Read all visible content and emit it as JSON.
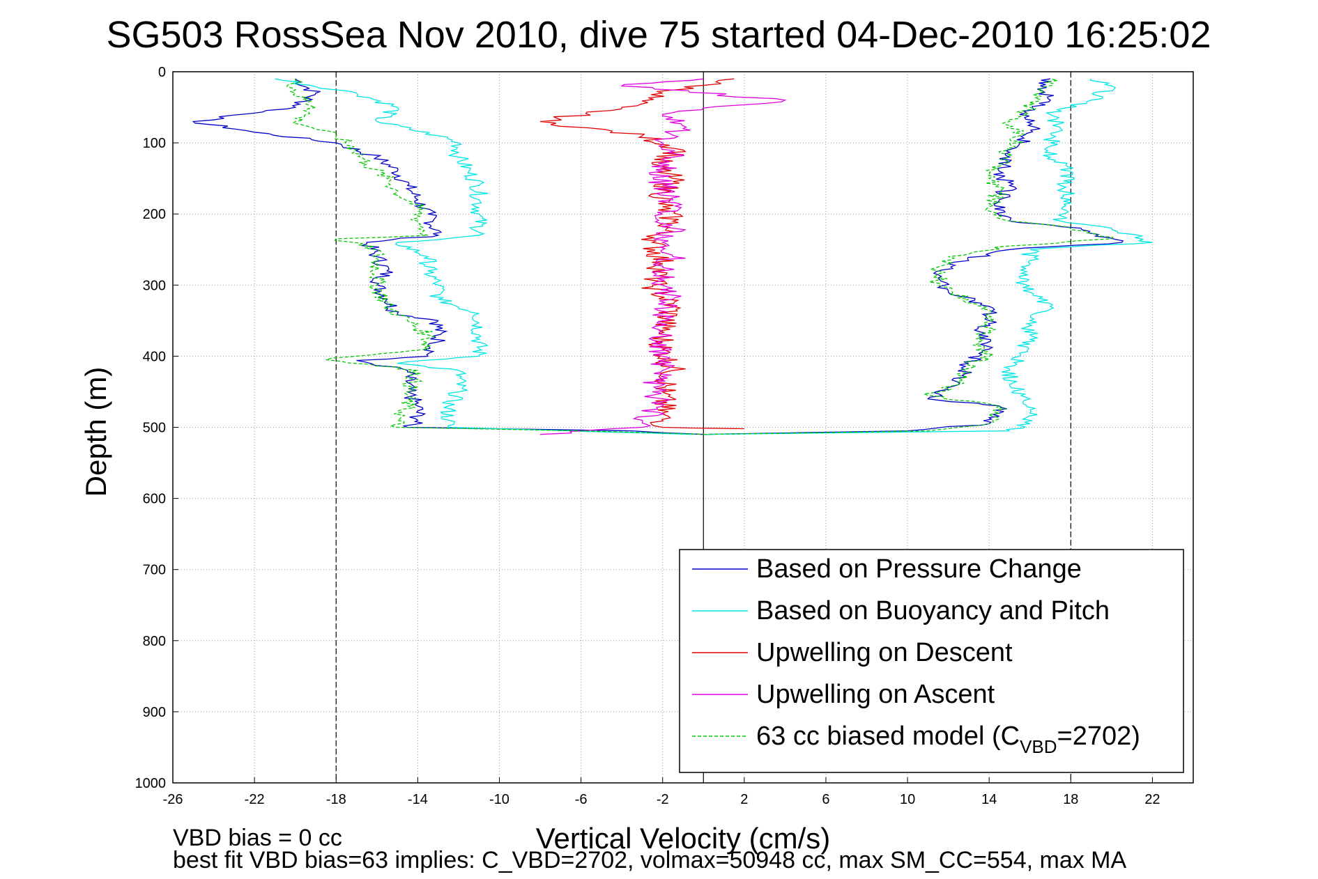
{
  "chart_data": {
    "type": "line",
    "title": "SG503 RossSea Nov 2010, dive 75 started 04-Dec-2010 16:25:02",
    "xlabel": "Vertical Velocity (cm/s)",
    "ylabel": "Depth (m)",
    "xlim": [
      -26,
      24
    ],
    "ylim": [
      0,
      1000
    ],
    "y_reversed": true,
    "grid": true,
    "legend_position": "lower-right",
    "x_ticks": [
      "-26",
      "-22",
      "-18",
      "-14",
      "-10",
      "-6",
      "-2",
      "2",
      "6",
      "10",
      "14",
      "18",
      "22"
    ],
    "y_ticks": [
      "0",
      "100",
      "200",
      "300",
      "400",
      "500",
      "600",
      "700",
      "800",
      "900",
      "1000"
    ],
    "reference_lines": [
      {
        "x": -18,
        "style": "dashed"
      },
      {
        "x": 0,
        "style": "solid"
      },
      {
        "x": 18,
        "style": "dashed"
      }
    ],
    "series": [
      {
        "name": "Based on Pressure Change",
        "color": "#0000c8",
        "style": "solid",
        "descent": [
          [
            10,
            -20
          ],
          [
            30,
            -19
          ],
          [
            50,
            -20
          ],
          [
            70,
            -25
          ],
          [
            85,
            -22
          ],
          [
            100,
            -18
          ],
          [
            120,
            -16
          ],
          [
            140,
            -15
          ],
          [
            160,
            -14.5
          ],
          [
            180,
            -14
          ],
          [
            200,
            -13.5
          ],
          [
            230,
            -13
          ],
          [
            240,
            -16.5
          ],
          [
            260,
            -16
          ],
          [
            280,
            -15.5
          ],
          [
            300,
            -16
          ],
          [
            320,
            -15.5
          ],
          [
            340,
            -15
          ],
          [
            350,
            -13
          ],
          [
            380,
            -13
          ],
          [
            400,
            -13.5
          ],
          [
            406,
            -17
          ],
          [
            420,
            -14.5
          ],
          [
            450,
            -14.5
          ],
          [
            470,
            -14
          ],
          [
            490,
            -14
          ],
          [
            500,
            -14.5
          ],
          [
            505,
            -3.5
          ],
          [
            510,
            0
          ]
        ],
        "ascent": [
          [
            510,
            0
          ],
          [
            505,
            10
          ],
          [
            495,
            14
          ],
          [
            480,
            14.5
          ],
          [
            470,
            14.5
          ],
          [
            460,
            11
          ],
          [
            440,
            12.5
          ],
          [
            410,
            13
          ],
          [
            400,
            13.5
          ],
          [
            390,
            14
          ],
          [
            370,
            13.5
          ],
          [
            350,
            14
          ],
          [
            330,
            14
          ],
          [
            310,
            12
          ],
          [
            290,
            11.5
          ],
          [
            270,
            12
          ],
          [
            250,
            15
          ],
          [
            240,
            20.5
          ],
          [
            220,
            18.5
          ],
          [
            210,
            15
          ],
          [
            180,
            14.5
          ],
          [
            160,
            15
          ],
          [
            140,
            14.5
          ],
          [
            120,
            15
          ],
          [
            100,
            15.5
          ],
          [
            80,
            16.5
          ],
          [
            60,
            15.5
          ],
          [
            40,
            17
          ],
          [
            20,
            16.5
          ],
          [
            10,
            17
          ]
        ]
      },
      {
        "name": "Based on Buoyancy and Pitch",
        "color": "#00e5e5",
        "style": "solid",
        "descent": [
          [
            10,
            -21
          ],
          [
            30,
            -17
          ],
          [
            50,
            -15
          ],
          [
            70,
            -16
          ],
          [
            90,
            -13
          ],
          [
            100,
            -12
          ],
          [
            120,
            -12
          ],
          [
            140,
            -11.5
          ],
          [
            160,
            -11
          ],
          [
            180,
            -11
          ],
          [
            200,
            -11
          ],
          [
            230,
            -11
          ],
          [
            240,
            -15
          ],
          [
            260,
            -13.5
          ],
          [
            280,
            -13.5
          ],
          [
            300,
            -13
          ],
          [
            320,
            -13
          ],
          [
            340,
            -11
          ],
          [
            370,
            -11
          ],
          [
            400,
            -11
          ],
          [
            410,
            -15
          ],
          [
            420,
            -12
          ],
          [
            450,
            -12
          ],
          [
            470,
            -12.5
          ],
          [
            490,
            -12.5
          ],
          [
            500,
            -12.5
          ],
          [
            510,
            -0.5
          ]
        ],
        "ascent": [
          [
            510,
            0
          ],
          [
            505,
            15
          ],
          [
            495,
            16
          ],
          [
            480,
            16
          ],
          [
            460,
            16
          ],
          [
            440,
            15
          ],
          [
            420,
            15
          ],
          [
            400,
            15.5
          ],
          [
            370,
            16
          ],
          [
            350,
            16
          ],
          [
            330,
            17
          ],
          [
            310,
            16
          ],
          [
            290,
            15.5
          ],
          [
            270,
            16
          ],
          [
            250,
            16
          ],
          [
            240,
            22
          ],
          [
            220,
            20
          ],
          [
            210,
            17.5
          ],
          [
            180,
            18
          ],
          [
            160,
            17.5
          ],
          [
            140,
            18
          ],
          [
            120,
            17
          ],
          [
            100,
            17
          ],
          [
            80,
            17.5
          ],
          [
            60,
            17
          ],
          [
            40,
            19
          ],
          [
            20,
            20
          ],
          [
            10,
            19
          ]
        ]
      },
      {
        "name": "Upwelling on Descent",
        "color": "#e00000",
        "style": "solid",
        "descent": [
          [
            10,
            1.5
          ],
          [
            30,
            -2
          ],
          [
            50,
            -4
          ],
          [
            70,
            -8
          ],
          [
            90,
            -3
          ],
          [
            110,
            -1
          ],
          [
            130,
            -2.5
          ],
          [
            150,
            -1.5
          ],
          [
            170,
            -2
          ],
          [
            190,
            -2
          ],
          [
            210,
            -1.5
          ],
          [
            240,
            -2.5
          ],
          [
            270,
            -2
          ],
          [
            300,
            -2.5
          ],
          [
            330,
            -1.5
          ],
          [
            360,
            -2
          ],
          [
            390,
            -2
          ],
          [
            420,
            -1.5
          ],
          [
            450,
            -2
          ],
          [
            480,
            -2
          ],
          [
            500,
            -2
          ],
          [
            502,
            2
          ]
        ]
      },
      {
        "name": "Upwelling on Ascent",
        "color": "#e000e0",
        "style": "solid",
        "ascent": [
          [
            510,
            -8
          ],
          [
            500,
            -3
          ],
          [
            490,
            -3
          ],
          [
            470,
            -2
          ],
          [
            450,
            -2.5
          ],
          [
            420,
            -2
          ],
          [
            400,
            -2
          ],
          [
            380,
            -2
          ],
          [
            360,
            -2.5
          ],
          [
            340,
            -2
          ],
          [
            320,
            -1.5
          ],
          [
            300,
            -2
          ],
          [
            280,
            -2
          ],
          [
            260,
            -1.5
          ],
          [
            240,
            -2
          ],
          [
            220,
            -1.5
          ],
          [
            200,
            -2
          ],
          [
            180,
            -1.5
          ],
          [
            160,
            -2
          ],
          [
            140,
            -2
          ],
          [
            120,
            -1.5
          ],
          [
            100,
            -2
          ],
          [
            80,
            -1
          ],
          [
            60,
            -2
          ],
          [
            40,
            4
          ],
          [
            20,
            -4
          ],
          [
            10,
            0
          ]
        ]
      },
      {
        "name": "63 cc biased model (CVBD=2702)",
        "legend_main": "63 cc biased model (C",
        "legend_sub": "VBD",
        "legend_tail": "=2702)",
        "color": "#00c800",
        "style": "dashed",
        "descent": [
          [
            10,
            -20
          ],
          [
            30,
            -20
          ],
          [
            50,
            -19
          ],
          [
            70,
            -20
          ],
          [
            90,
            -18
          ],
          [
            110,
            -17
          ],
          [
            130,
            -16.5
          ],
          [
            150,
            -15.5
          ],
          [
            170,
            -15
          ],
          [
            190,
            -14
          ],
          [
            210,
            -14
          ],
          [
            230,
            -13.5
          ],
          [
            235,
            -18
          ],
          [
            250,
            -16
          ],
          [
            270,
            -16
          ],
          [
            300,
            -16
          ],
          [
            330,
            -15.5
          ],
          [
            350,
            -14.5
          ],
          [
            370,
            -13.5
          ],
          [
            390,
            -13.5
          ],
          [
            405,
            -18.5
          ],
          [
            420,
            -14
          ],
          [
            450,
            -14.5
          ],
          [
            470,
            -14.5
          ],
          [
            490,
            -15
          ],
          [
            500,
            -15
          ],
          [
            505,
            -6
          ],
          [
            510,
            0
          ]
        ],
        "ascent": [
          [
            510,
            0
          ],
          [
            505,
            11
          ],
          [
            495,
            14
          ],
          [
            480,
            14.5
          ],
          [
            470,
            14.5
          ],
          [
            455,
            11
          ],
          [
            440,
            12.5
          ],
          [
            410,
            13
          ],
          [
            400,
            14
          ],
          [
            380,
            13.5
          ],
          [
            360,
            14
          ],
          [
            340,
            14
          ],
          [
            320,
            13
          ],
          [
            300,
            11.5
          ],
          [
            280,
            11.5
          ],
          [
            260,
            12
          ],
          [
            245,
            15
          ],
          [
            235,
            20
          ],
          [
            220,
            18
          ],
          [
            210,
            15
          ],
          [
            190,
            14
          ],
          [
            170,
            14.5
          ],
          [
            150,
            14
          ],
          [
            130,
            14.5
          ],
          [
            110,
            15
          ],
          [
            90,
            15.5
          ],
          [
            70,
            15
          ],
          [
            50,
            16
          ],
          [
            30,
            16.5
          ],
          [
            10,
            17
          ]
        ]
      }
    ]
  },
  "footer": {
    "line1": "VBD bias = 0 cc",
    "line2": "best fit VBD bias=63 implies: C_VBD=2702, volmax=50948 cc, max SM_CC=554, max MA"
  }
}
